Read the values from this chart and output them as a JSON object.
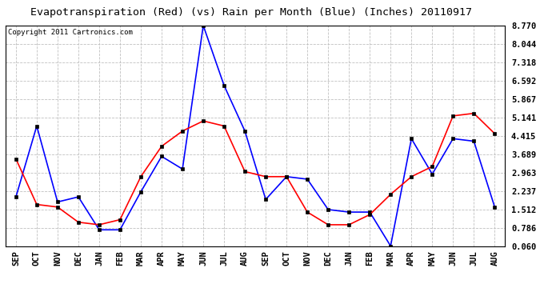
{
  "title": "Evapotranspiration (Red) (vs) Rain per Month (Blue) (Inches) 20110917",
  "copyright": "Copyright 2011 Cartronics.com",
  "months": [
    "SEP",
    "OCT",
    "NOV",
    "DEC",
    "JAN",
    "FEB",
    "MAR",
    "APR",
    "MAY",
    "JUN",
    "JUL",
    "AUG",
    "SEP",
    "OCT",
    "NOV",
    "DEC",
    "JAN",
    "FEB",
    "MAR",
    "APR",
    "MAY",
    "JUN",
    "JUL",
    "AUG"
  ],
  "red_et": [
    3.5,
    1.7,
    1.6,
    1.0,
    0.9,
    1.1,
    2.8,
    4.0,
    4.6,
    5.0,
    4.8,
    3.0,
    2.8,
    2.8,
    1.4,
    0.9,
    0.9,
    1.3,
    2.1,
    2.8,
    3.2,
    5.2,
    5.3,
    4.5
  ],
  "blue_rain": [
    2.0,
    4.8,
    1.8,
    2.0,
    0.7,
    0.7,
    2.2,
    3.6,
    3.1,
    8.77,
    6.4,
    4.6,
    1.9,
    2.8,
    2.7,
    1.5,
    1.4,
    1.4,
    0.06,
    4.3,
    2.9,
    4.3,
    4.2,
    1.6
  ],
  "ylim_min": 0.06,
  "ylim_max": 8.77,
  "yticks": [
    0.06,
    0.786,
    1.512,
    2.237,
    2.963,
    3.689,
    4.415,
    5.141,
    5.867,
    6.592,
    7.318,
    8.044,
    8.77
  ],
  "red_color": "#ff0000",
  "blue_color": "#0000ff",
  "bg_color": "#ffffff",
  "grid_color": "#c0c0c0",
  "title_fontsize": 9.5,
  "copyright_fontsize": 6.5,
  "tick_fontsize": 7.5
}
